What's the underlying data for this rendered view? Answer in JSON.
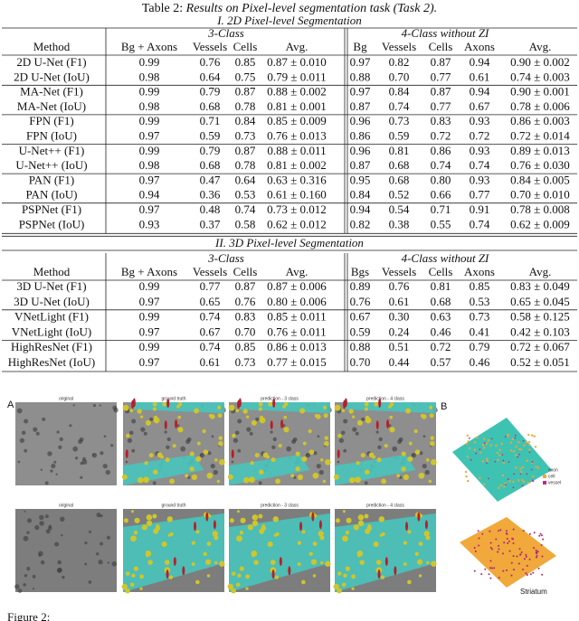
{
  "table": {
    "label": "Table 2:",
    "title": "Results on Pixel-level segmentation task (Task 2).",
    "sections": [
      {
        "title": "I. 2D Pixel-level Segmentation",
        "group_3class": "3-Class",
        "group_4class": "4-Class without ZI",
        "columns": [
          "Method",
          "Bg + Axons",
          "Vessels",
          "Cells",
          "Avg.",
          "Bg",
          "Vessels",
          "Cells",
          "Axons",
          "Avg."
        ],
        "rows": [
          [
            "2D U-Net (F1)",
            "0.99",
            "0.76",
            "0.85",
            "0.87 ± 0.010",
            "0.97",
            "0.82",
            "0.87",
            "0.94",
            "0.90 ± 0.002"
          ],
          [
            "2D U-Net (IoU)",
            "0.98",
            "0.64",
            "0.75",
            "0.79 ± 0.011",
            "0.88",
            "0.70",
            "0.77",
            "0.61",
            "0.74 ± 0.003"
          ],
          [
            "MA-Net (F1)",
            "0.99",
            "0.79",
            "0.87",
            "0.88 ± 0.002",
            "0.97",
            "0.84",
            "0.87",
            "0.94",
            "0.90 ± 0.001"
          ],
          [
            "MA-Net (IoU)",
            "0.98",
            "0.68",
            "0.78",
            "0.81 ± 0.001",
            "0.87",
            "0.74",
            "0.77",
            "0.67",
            "0.78 ± 0.006"
          ],
          [
            "FPN (F1)",
            "0.99",
            "0.71",
            "0.84",
            "0.85 ± 0.009",
            "0.96",
            "0.73",
            "0.83",
            "0.93",
            "0.86 ± 0.003"
          ],
          [
            "FPN (IoU)",
            "0.97",
            "0.59",
            "0.73",
            "0.76 ± 0.013",
            "0.86",
            "0.59",
            "0.72",
            "0.72",
            "0.72 ± 0.014"
          ],
          [
            "U-Net++ (F1)",
            "0.99",
            "0.79",
            "0.87",
            "0.88 ± 0.011",
            "0.96",
            "0.81",
            "0.86",
            "0.93",
            "0.89 ± 0.013"
          ],
          [
            "U-Net++ (IoU)",
            "0.98",
            "0.68",
            "0.78",
            "0.81 ± 0.002",
            "0.87",
            "0.68",
            "0.74",
            "0.74",
            "0.76 ± 0.030"
          ],
          [
            "PAN (F1)",
            "0.97",
            "0.47",
            "0.64",
            "0.63 ± 0.316",
            "0.95",
            "0.68",
            "0.80",
            "0.93",
            "0.84 ± 0.005"
          ],
          [
            "PAN (IoU)",
            "0.94",
            "0.36",
            "0.53",
            "0.61 ± 0.160",
            "0.84",
            "0.52",
            "0.66",
            "0.77",
            "0.70 ± 0.010"
          ],
          [
            "PSPNet (F1)",
            "0.97",
            "0.48",
            "0.74",
            "0.73 ± 0.012",
            "0.94",
            "0.54",
            "0.71",
            "0.91",
            "0.78 ± 0.008"
          ],
          [
            "PSPNet (IoU)",
            "0.93",
            "0.37",
            "0.58",
            "0.62 ± 0.012",
            "0.82",
            "0.38",
            "0.55",
            "0.74",
            "0.62 ± 0.009"
          ]
        ]
      },
      {
        "title": "II. 3D Pixel-level Segmentation",
        "group_3class": "3-Class",
        "group_4class": "4-Class without ZI",
        "columns": [
          "Method",
          "Bg + Axons",
          "Vessels",
          "Cells",
          "Avg.",
          "Bgs",
          "Vessels",
          "Cells",
          "Axons",
          "Avg."
        ],
        "rows": [
          [
            "3D U-Net (F1)",
            "0.99",
            "0.77",
            "0.87",
            "0.87 ± 0.006",
            "0.89",
            "0.76",
            "0.81",
            "0.85",
            "0.83 ± 0.049"
          ],
          [
            "3D U-Net (IoU)",
            "0.97",
            "0.65",
            "0.76",
            "0.80 ± 0.006",
            "0.76",
            "0.61",
            "0.68",
            "0.53",
            "0.65 ± 0.045"
          ],
          [
            "VNetLight (F1)",
            "0.99",
            "0.74",
            "0.83",
            "0.85 ± 0.011",
            "0.67",
            "0.30",
            "0.63",
            "0.73",
            "0.58 ± 0.125"
          ],
          [
            "VNetLight (IoU)",
            "0.97",
            "0.67",
            "0.70",
            "0.76 ± 0.011",
            "0.59",
            "0.24",
            "0.46",
            "0.41",
            "0.42 ± 0.103"
          ],
          [
            "HighResNet (F1)",
            "0.99",
            "0.74",
            "0.85",
            "0.86 ± 0.013",
            "0.88",
            "0.51",
            "0.72",
            "0.79",
            "0.72 ± 0.067"
          ],
          [
            "HighResNet (IoU)",
            "0.97",
            "0.61",
            "0.73",
            "0.77 ± 0.015",
            "0.70",
            "0.44",
            "0.57",
            "0.46",
            "0.52 ± 0.051"
          ]
        ]
      }
    ]
  },
  "figure": {
    "panel_a_label": "A",
    "panel_b_label": "B",
    "image_titles": [
      [
        "original",
        "ground truth",
        "prediction - 3 class",
        "prediction - 4 class"
      ],
      [
        "original",
        "ground truth",
        "prediction - 3 class",
        "prediction - 4 class"
      ]
    ],
    "legend": [
      "axon",
      "cell",
      "vessel"
    ],
    "region_label": "Striatum",
    "caption": "Figure 2:"
  }
}
